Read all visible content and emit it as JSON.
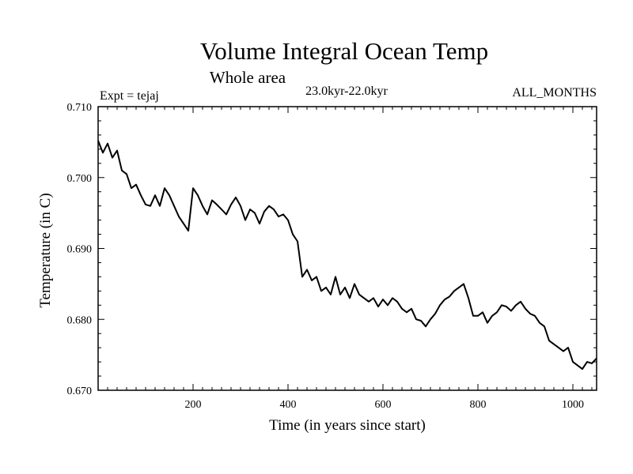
{
  "chart_data": {
    "type": "line",
    "title": "Volume Integral Ocean Temp",
    "subtitle": "Whole area",
    "period": "23.0kyr-22.0kyr",
    "left_label": "Expt = tejaj",
    "right_label": "ALL_MONTHS",
    "xlabel": "Time (in years since start)",
    "ylabel": "Temperature (in C)",
    "xlim": [
      0,
      1050
    ],
    "ylim": [
      0.67,
      0.71
    ],
    "x_ticks": [
      200,
      400,
      600,
      800,
      1000
    ],
    "x_tick_labels": [
      "200",
      "400",
      "600",
      "800",
      "1000"
    ],
    "y_ticks": [
      0.67,
      0.68,
      0.69,
      0.7,
      0.71
    ],
    "y_tick_labels": [
      "0.670",
      "0.680",
      "0.690",
      "0.700",
      "0.710"
    ],
    "grid": false,
    "series": [
      {
        "name": "Volume integral ocean temperature",
        "color": "#000000",
        "x": [
          0,
          10,
          20,
          30,
          40,
          50,
          60,
          70,
          80,
          90,
          100,
          110,
          120,
          130,
          140,
          150,
          160,
          170,
          180,
          190,
          200,
          210,
          220,
          230,
          240,
          250,
          260,
          270,
          280,
          290,
          300,
          310,
          320,
          330,
          340,
          350,
          360,
          370,
          380,
          390,
          400,
          410,
          420,
          430,
          440,
          450,
          460,
          470,
          480,
          490,
          500,
          510,
          520,
          530,
          540,
          550,
          560,
          570,
          580,
          590,
          600,
          610,
          620,
          630,
          640,
          650,
          660,
          670,
          680,
          690,
          700,
          710,
          720,
          730,
          740,
          750,
          760,
          770,
          780,
          790,
          800,
          810,
          820,
          830,
          840,
          850,
          860,
          870,
          880,
          890,
          900,
          910,
          920,
          930,
          940,
          950,
          960,
          970,
          980,
          990,
          1000,
          1010,
          1020,
          1030,
          1040,
          1050
        ],
        "values": [
          0.7052,
          0.7035,
          0.7048,
          0.7028,
          0.7038,
          0.701,
          0.7005,
          0.6985,
          0.699,
          0.6975,
          0.6962,
          0.696,
          0.6975,
          0.696,
          0.6985,
          0.6975,
          0.696,
          0.6945,
          0.6935,
          0.6925,
          0.6985,
          0.6975,
          0.696,
          0.6948,
          0.6968,
          0.6962,
          0.6955,
          0.6948,
          0.6962,
          0.6972,
          0.696,
          0.694,
          0.6955,
          0.695,
          0.6935,
          0.6952,
          0.696,
          0.6955,
          0.6945,
          0.6948,
          0.694,
          0.692,
          0.691,
          0.686,
          0.687,
          0.6855,
          0.686,
          0.684,
          0.6845,
          0.6835,
          0.686,
          0.6835,
          0.6845,
          0.683,
          0.685,
          0.6835,
          0.683,
          0.6825,
          0.683,
          0.6818,
          0.6828,
          0.682,
          0.683,
          0.6825,
          0.6815,
          0.681,
          0.6815,
          0.68,
          0.6798,
          0.679,
          0.68,
          0.6808,
          0.682,
          0.6828,
          0.6832,
          0.684,
          0.6845,
          0.685,
          0.683,
          0.6805,
          0.6805,
          0.681,
          0.6795,
          0.6805,
          0.681,
          0.682,
          0.6818,
          0.6812,
          0.682,
          0.6825,
          0.6815,
          0.6808,
          0.6805,
          0.6795,
          0.679,
          0.677,
          0.6765,
          0.676,
          0.6755,
          0.676,
          0.674,
          0.6735,
          0.673,
          0.674,
          0.6738,
          0.6745
        ]
      }
    ]
  }
}
